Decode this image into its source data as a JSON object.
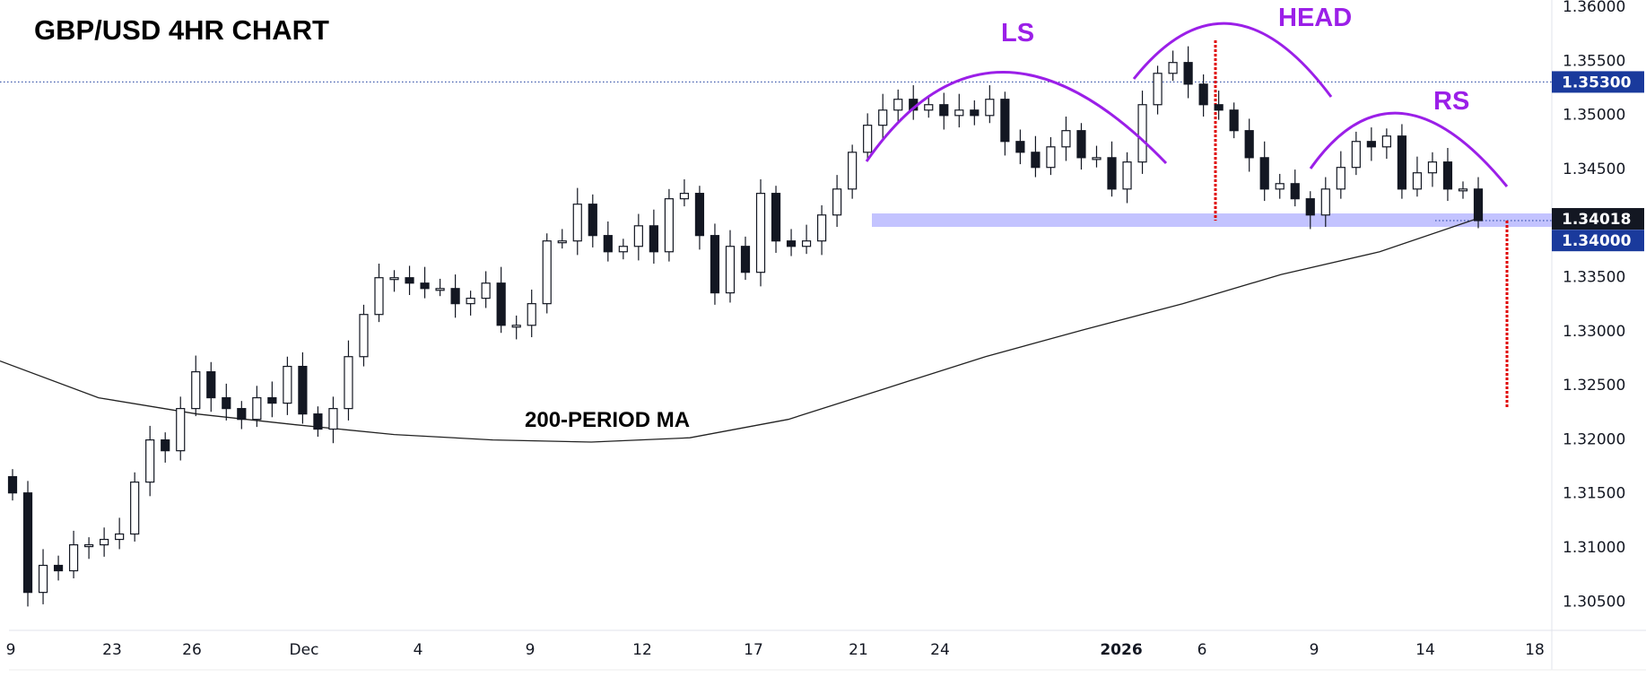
{
  "chart_data": {
    "type": "candlestick",
    "title": "GBP/USD 4HR CHART",
    "ylim": [
      1.3025,
      1.36
    ],
    "y_ticks": [
      "1.36000",
      "1.35500",
      "1.35000",
      "1.34500",
      "1.33500",
      "1.33000",
      "1.32500",
      "1.32000",
      "1.31500",
      "1.31000",
      "1.30500"
    ],
    "y_tick_values": [
      1.36,
      1.355,
      1.35,
      1.345,
      1.335,
      1.33,
      1.325,
      1.32,
      1.315,
      1.31,
      1.305
    ],
    "x_ticks": [
      "9",
      "23",
      "26",
      "Dec",
      "4",
      "9",
      "12",
      "17",
      "21",
      "24",
      "2026",
      "6",
      "9",
      "14",
      "18"
    ],
    "first_open": 1.3165,
    "close": [
      1.315,
      1.3058,
      1.3083,
      1.3078,
      1.3102,
      1.3102,
      1.3107,
      1.3112,
      1.316,
      1.3199,
      1.3189,
      1.3228,
      1.3262,
      1.3238,
      1.3228,
      1.3218,
      1.3238,
      1.3233,
      1.3267,
      1.3223,
      1.3209,
      1.3228,
      1.3276,
      1.3315,
      1.3349,
      1.3349,
      1.3344,
      1.3339,
      1.3339,
      1.3325,
      1.333,
      1.3344,
      1.3305,
      1.3305,
      1.3325,
      1.3383,
      1.3383,
      1.3417,
      1.3388,
      1.3373,
      1.3378,
      1.3397,
      1.3373,
      1.3422,
      1.3427,
      1.3388,
      1.3335,
      1.3378,
      1.3354,
      1.3427,
      1.3383,
      1.3378,
      1.3383,
      1.3407,
      1.3431,
      1.3465,
      1.349,
      1.3504,
      1.3514,
      1.3504,
      1.3509,
      1.3499,
      1.3504,
      1.3499,
      1.3514,
      1.3475,
      1.3465,
      1.3451,
      1.347,
      1.3485,
      1.346,
      1.346,
      1.3431,
      1.3456,
      1.3509,
      1.3538,
      1.3548,
      1.3528,
      1.3509,
      1.3504,
      1.3485,
      1.346,
      1.3431,
      1.3436,
      1.3422,
      1.3407,
      1.3431,
      1.3451,
      1.3475,
      1.347,
      1.348,
      1.3431,
      1.3446,
      1.3456,
      1.3431,
      1.3431,
      1.34018
    ],
    "ma_200": [
      1.3272,
      1.3238,
      1.3223,
      1.3213,
      1.3204,
      1.3199,
      1.3197,
      1.3201,
      1.3218,
      1.3247,
      1.3276,
      1.3301,
      1.3325,
      1.3352,
      1.3373,
      1.3404
    ],
    "ma_label": "200-PERIOD MA",
    "levels": {
      "resistance": {
        "value": 1.353,
        "label": "1.35300"
      },
      "last_price": {
        "value": 1.34018,
        "label": "1.34018"
      },
      "neckline": {
        "value": 1.34,
        "label": "1.34000"
      },
      "target": 1.3228
    },
    "annotations": [
      "LS",
      "HEAD",
      "RS"
    ],
    "colors": {
      "arc": "#9b1fe8",
      "target": "#e00000",
      "tag_blue": "#1a3a9c",
      "tag_dark": "#131722",
      "band": "#b8b8ff"
    }
  }
}
